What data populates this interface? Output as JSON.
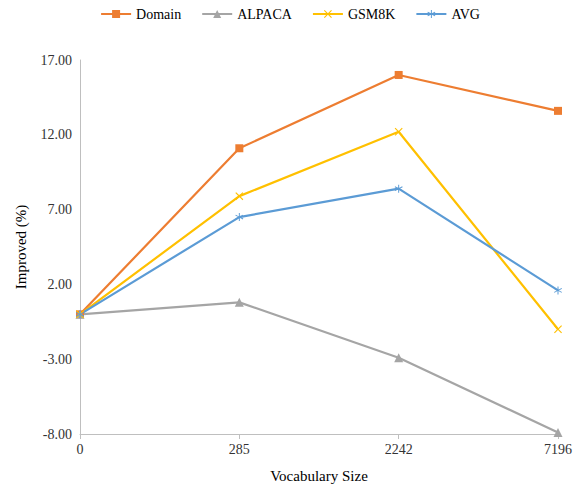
{
  "chart_data": {
    "type": "line",
    "x_label": "Vocabulary Size",
    "y_label": "Improved (%)",
    "categories": [
      "0",
      "285",
      "2242",
      "7196"
    ],
    "series": [
      {
        "name": "Domain",
        "color": "#ED7D31",
        "marker": "square",
        "values": [
          0.0,
          11.1,
          16.0,
          13.6
        ]
      },
      {
        "name": "ALPACA",
        "color": "#A5A5A5",
        "marker": "triangle",
        "values": [
          0.0,
          0.8,
          -2.9,
          -7.9
        ]
      },
      {
        "name": "GSM8K",
        "color": "#FFC000",
        "marker": "x",
        "values": [
          0.0,
          7.9,
          12.2,
          -1.0
        ]
      },
      {
        "name": "AVG",
        "color": "#5B9BD5",
        "marker": "asterisk",
        "values": [
          0.0,
          6.5,
          8.4,
          1.6
        ]
      }
    ],
    "ylim": [
      -8,
      17
    ],
    "yticks": [
      {
        "value": -8,
        "label": "-8.00"
      },
      {
        "value": -3,
        "label": "-3.00"
      },
      {
        "value": 2,
        "label": "2.00"
      },
      {
        "value": 7,
        "label": "7.00"
      },
      {
        "value": 12,
        "label": "12.00"
      },
      {
        "value": 17,
        "label": "17.00"
      }
    ],
    "grid": false,
    "legend": "top"
  }
}
